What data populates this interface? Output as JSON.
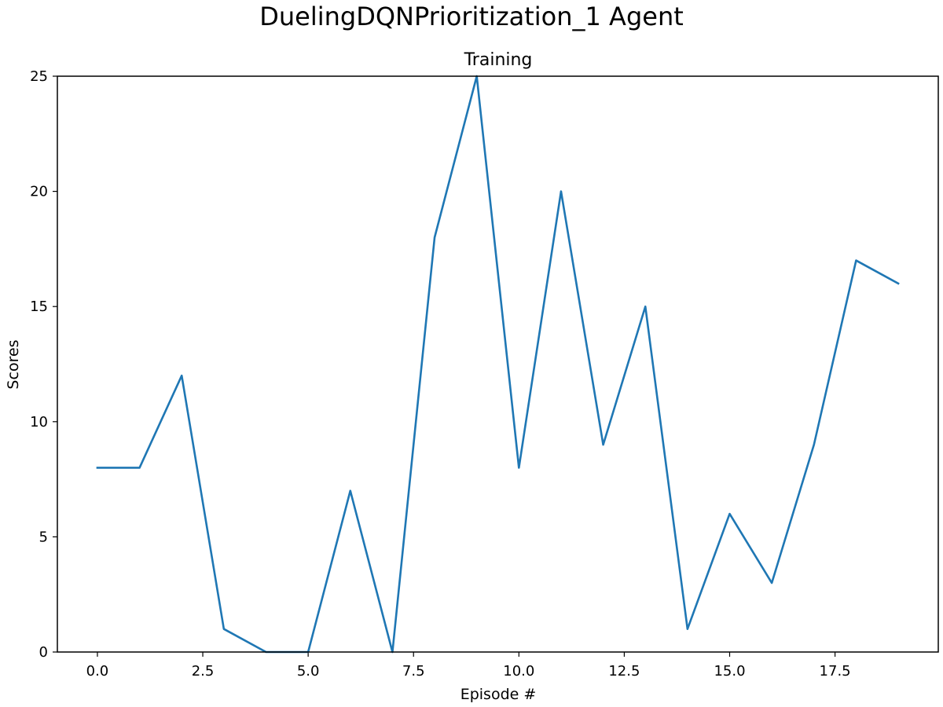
{
  "chart_data": {
    "type": "line",
    "title": "DuelingDQNPrioritization_1 Agent",
    "subtitle": "Training",
    "xlabel": "Episode #",
    "ylabel": "Scores",
    "xlim": [
      -0.95,
      19.95
    ],
    "ylim": [
      0,
      25
    ],
    "xticks": [
      0.0,
      2.5,
      5.0,
      7.5,
      10.0,
      12.5,
      15.0,
      17.5
    ],
    "xtick_labels": [
      "0.0",
      "2.5",
      "5.0",
      "7.5",
      "10.0",
      "12.5",
      "15.0",
      "17.5"
    ],
    "yticks": [
      0,
      5,
      10,
      15,
      20,
      25
    ],
    "ytick_labels": [
      "0",
      "5",
      "10",
      "15",
      "20",
      "25"
    ],
    "grid": false,
    "series": [
      {
        "color": "#1f77b4",
        "x": [
          0,
          1,
          2,
          3,
          4,
          5,
          6,
          7,
          8,
          9,
          10,
          11,
          12,
          13,
          14,
          15,
          16,
          17,
          18,
          19
        ],
        "values": [
          8,
          8,
          12,
          1,
          0,
          0,
          7,
          0,
          18,
          25,
          8,
          20,
          9,
          15,
          1,
          6,
          3,
          9,
          17,
          16
        ]
      }
    ]
  }
}
